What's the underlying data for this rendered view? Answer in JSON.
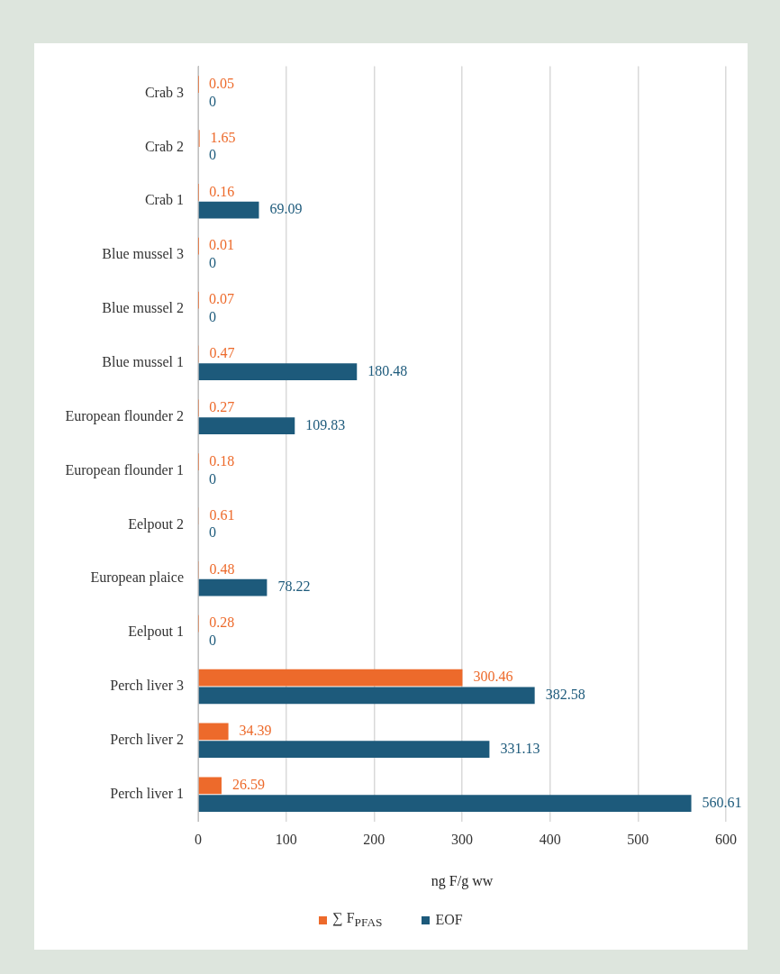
{
  "chart_data": {
    "type": "bar",
    "orientation": "horizontal",
    "xlabel": "ng F/g ww",
    "categories": [
      "Crab 3",
      "Crab 2",
      "Crab 1",
      "Blue mussel 3",
      "Blue mussel 2",
      "Blue mussel 1",
      "European flounder 2",
      "European flounder 1",
      "Eelpout 2",
      "European plaice",
      "Eelpout 1",
      "Perch liver 3",
      "Perch liver 2",
      "Perch liver 1"
    ],
    "series": [
      {
        "name": "∑ F$_{PFAS}$",
        "color": "#ed6a2b",
        "values": [
          0.05,
          1.65,
          0.16,
          0.01,
          0.07,
          0.47,
          0.27,
          0.18,
          0.61,
          0.48,
          0.28,
          300.46,
          34.39,
          26.59
        ]
      },
      {
        "name": "EOF",
        "color": "#1d5a7b",
        "values": [
          0,
          0,
          69.09,
          0,
          0,
          180.48,
          109.83,
          0,
          0,
          78.22,
          0,
          382.58,
          331.13,
          560.61
        ]
      }
    ],
    "xlim": [
      0,
      600
    ],
    "xticks": [
      0,
      100,
      200,
      300,
      400,
      500,
      600
    ],
    "grid": "x",
    "legend": "bottom",
    "data_labels": true
  }
}
